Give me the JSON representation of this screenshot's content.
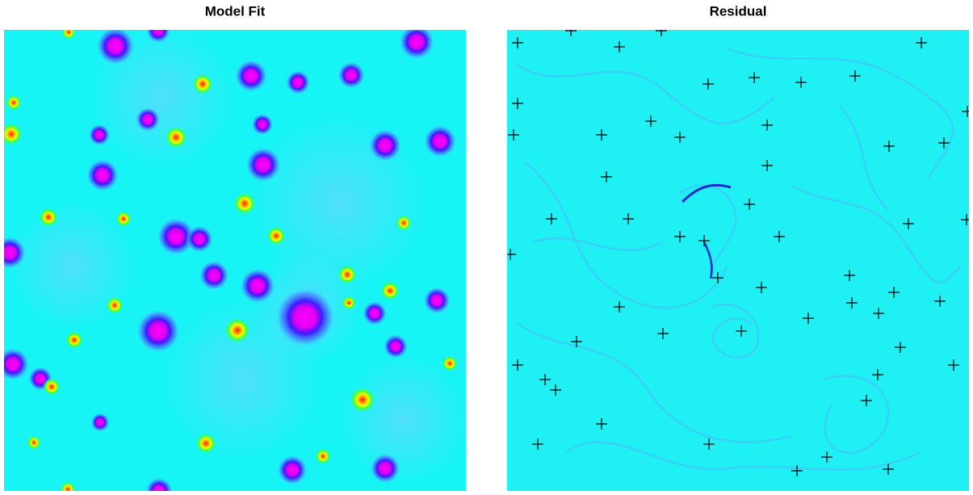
{
  "panels": [
    {
      "title": "Model Fit"
    },
    {
      "title": "Residual"
    }
  ]
}
